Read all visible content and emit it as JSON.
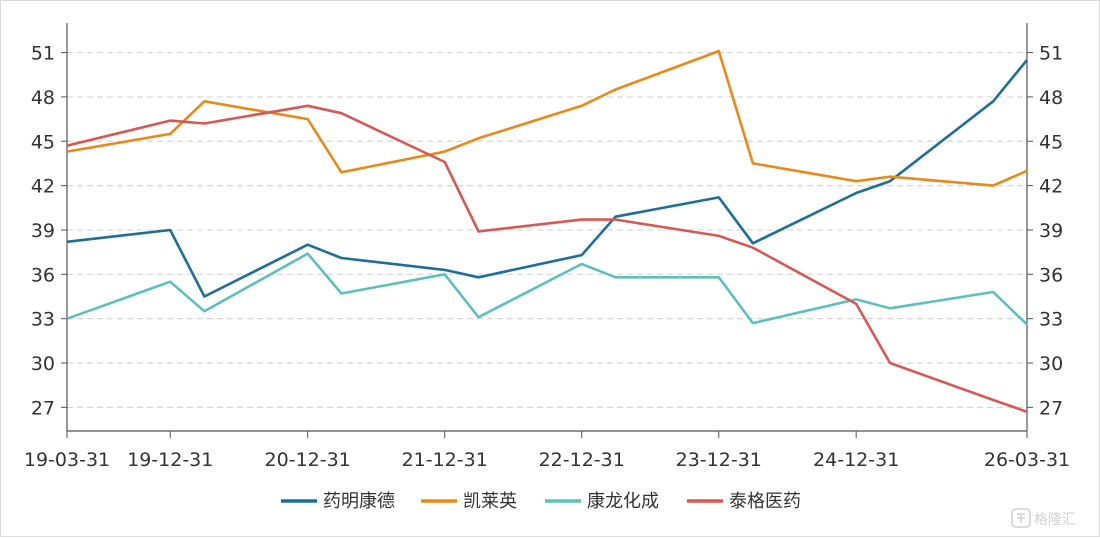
{
  "chart_data": {
    "type": "line",
    "x": [
      "19-03-31",
      "19-12-31",
      "20-03-31",
      "20-12-31",
      "21-03-31",
      "21-12-31",
      "22-03-31",
      "22-12-31",
      "23-03-31",
      "23-12-31",
      "24-03-31",
      "24-12-31",
      "25-03-31",
      "25-12-31",
      "26-03-31"
    ],
    "x_tick_labels": [
      "19-03-31",
      "19-12-31",
      "20-12-31",
      "21-12-31",
      "22-12-31",
      "23-12-31",
      "24-12-31",
      "26-03-31"
    ],
    "y_ticks": [
      27,
      30,
      33,
      36,
      39,
      42,
      45,
      48,
      51
    ],
    "ylim": [
      25.4,
      53
    ],
    "grid": "horizontal dashed",
    "legend_position": "bottom",
    "series": [
      {
        "name": "药明康德",
        "color": "#1f6e99",
        "values": [
          38.2,
          39.0,
          34.5,
          38.0,
          37.1,
          36.3,
          35.8,
          37.3,
          39.9,
          41.2,
          38.1,
          41.5,
          42.3,
          47.7,
          50.5
        ]
      },
      {
        "name": "凯莱英",
        "color": "#e8891c",
        "values": [
          44.3,
          45.5,
          47.7,
          46.5,
          42.9,
          44.3,
          45.2,
          47.4,
          48.5,
          51.1,
          43.5,
          42.3,
          42.6,
          42.0,
          43.0
        ]
      },
      {
        "name": "康龙化成",
        "color": "#5fbfbf",
        "values": [
          33.0,
          35.5,
          33.5,
          37.4,
          34.7,
          36.0,
          33.1,
          36.7,
          35.8,
          35.8,
          32.7,
          34.3,
          33.7,
          34.8,
          32.6
        ]
      },
      {
        "name": "泰格医药",
        "color": "#d45a55",
        "values": [
          44.7,
          46.4,
          46.2,
          47.4,
          46.9,
          43.6,
          38.9,
          39.7,
          39.7,
          38.6,
          37.8,
          34.0,
          30.0,
          27.5,
          26.7
        ]
      }
    ]
  },
  "watermark": {
    "text": "格隆汇"
  }
}
